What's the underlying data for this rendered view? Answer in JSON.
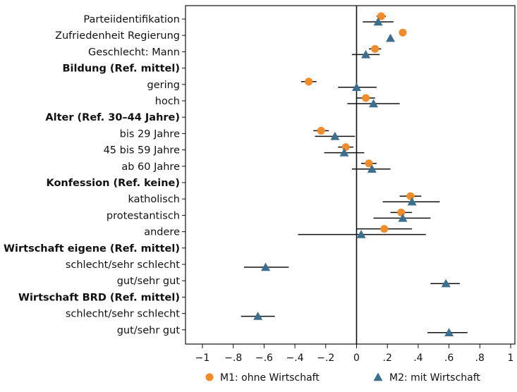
{
  "chart_data": {
    "type": "scatter",
    "subtype": "coefficient-plot",
    "orientation": "horizontal",
    "xlim": [
      -1.0,
      1.0
    ],
    "x_ticks": [
      -1.0,
      -0.8,
      -0.6,
      -0.4,
      -0.2,
      0.0,
      0.2,
      0.4,
      0.6,
      0.8,
      1.0
    ],
    "x_tick_labels": [
      "−1",
      "−.8",
      "−.6",
      "−.4",
      "−.2",
      "0",
      ".2",
      ".4",
      ".6",
      ".8",
      "1"
    ],
    "reference_line": 0,
    "grid": false,
    "legend_position": "bottom",
    "rows": [
      {
        "label": "Parteiidentifikation",
        "header": false
      },
      {
        "label": "Zufriedenheit Regierung",
        "header": false
      },
      {
        "label": "Geschlecht: Mann",
        "header": false
      },
      {
        "label": "Bildung (Ref. mittel)",
        "header": true
      },
      {
        "label": "gering",
        "header": false
      },
      {
        "label": "hoch",
        "header": false
      },
      {
        "label": "Alter (Ref. 30–44 Jahre)",
        "header": true
      },
      {
        "label": "bis 29 Jahre",
        "header": false
      },
      {
        "label": "45 bis 59 Jahre",
        "header": false
      },
      {
        "label": "ab 60 Jahre",
        "header": false
      },
      {
        "label": "Konfession (Ref. keine)",
        "header": true
      },
      {
        "label": "katholisch",
        "header": false
      },
      {
        "label": "protestantisch",
        "header": false
      },
      {
        "label": "andere",
        "header": false
      },
      {
        "label": "Wirtschaft eigene (Ref. mittel)",
        "header": true
      },
      {
        "label": "schlecht/sehr schlecht",
        "header": false
      },
      {
        "label": "gut/sehr gut",
        "header": false
      },
      {
        "label": "Wirtschaft BRD (Ref. mittel)",
        "header": true
      },
      {
        "label": "schlecht/sehr schlecht",
        "header": false
      },
      {
        "label": "gut/sehr gut",
        "header": false
      }
    ],
    "series": [
      {
        "name": "M1: ohne Wirtschaft",
        "marker": "circle",
        "color": "#f28c28",
        "points": [
          {
            "row": 0,
            "estimate": 0.16,
            "ci": [
              0.13,
              0.19
            ]
          },
          {
            "row": 1,
            "estimate": 0.3,
            "ci": [
              0.29,
              0.31
            ]
          },
          {
            "row": 2,
            "estimate": 0.12,
            "ci": [
              0.08,
              0.16
            ]
          },
          {
            "row": 4,
            "estimate": -0.31,
            "ci": [
              -0.36,
              -0.26
            ]
          },
          {
            "row": 5,
            "estimate": 0.06,
            "ci": [
              0.0,
              0.12
            ]
          },
          {
            "row": 7,
            "estimate": -0.23,
            "ci": [
              -0.28,
              -0.18
            ]
          },
          {
            "row": 8,
            "estimate": -0.07,
            "ci": [
              -0.12,
              -0.02
            ]
          },
          {
            "row": 9,
            "estimate": 0.08,
            "ci": [
              0.03,
              0.13
            ]
          },
          {
            "row": 11,
            "estimate": 0.35,
            "ci": [
              0.28,
              0.42
            ]
          },
          {
            "row": 12,
            "estimate": 0.29,
            "ci": [
              0.22,
              0.36
            ]
          },
          {
            "row": 13,
            "estimate": 0.18,
            "ci": [
              0.0,
              0.36
            ]
          }
        ]
      },
      {
        "name": "M2: mit Wirtschaft",
        "marker": "triangle",
        "color": "#3a6f8f",
        "points": [
          {
            "row": 0,
            "estimate": 0.14,
            "ci": [
              0.04,
              0.24
            ]
          },
          {
            "row": 1,
            "estimate": 0.22,
            "ci": [
              0.22,
              0.22
            ]
          },
          {
            "row": 2,
            "estimate": 0.06,
            "ci": [
              -0.03,
              0.15
            ]
          },
          {
            "row": 4,
            "estimate": 0.0,
            "ci": [
              -0.12,
              0.13
            ]
          },
          {
            "row": 5,
            "estimate": 0.11,
            "ci": [
              -0.06,
              0.28
            ]
          },
          {
            "row": 7,
            "estimate": -0.14,
            "ci": [
              -0.27,
              -0.01
            ]
          },
          {
            "row": 8,
            "estimate": -0.08,
            "ci": [
              -0.21,
              0.05
            ]
          },
          {
            "row": 9,
            "estimate": 0.1,
            "ci": [
              -0.03,
              0.22
            ]
          },
          {
            "row": 11,
            "estimate": 0.36,
            "ci": [
              0.17,
              0.54
            ]
          },
          {
            "row": 12,
            "estimate": 0.3,
            "ci": [
              0.11,
              0.48
            ]
          },
          {
            "row": 13,
            "estimate": 0.03,
            "ci": [
              -0.38,
              0.45
            ]
          },
          {
            "row": 15,
            "estimate": -0.59,
            "ci": [
              -0.73,
              -0.44
            ]
          },
          {
            "row": 16,
            "estimate": 0.58,
            "ci": [
              0.48,
              0.67
            ]
          },
          {
            "row": 18,
            "estimate": -0.64,
            "ci": [
              -0.75,
              -0.53
            ]
          },
          {
            "row": 19,
            "estimate": 0.6,
            "ci": [
              0.46,
              0.72
            ]
          }
        ]
      }
    ]
  }
}
